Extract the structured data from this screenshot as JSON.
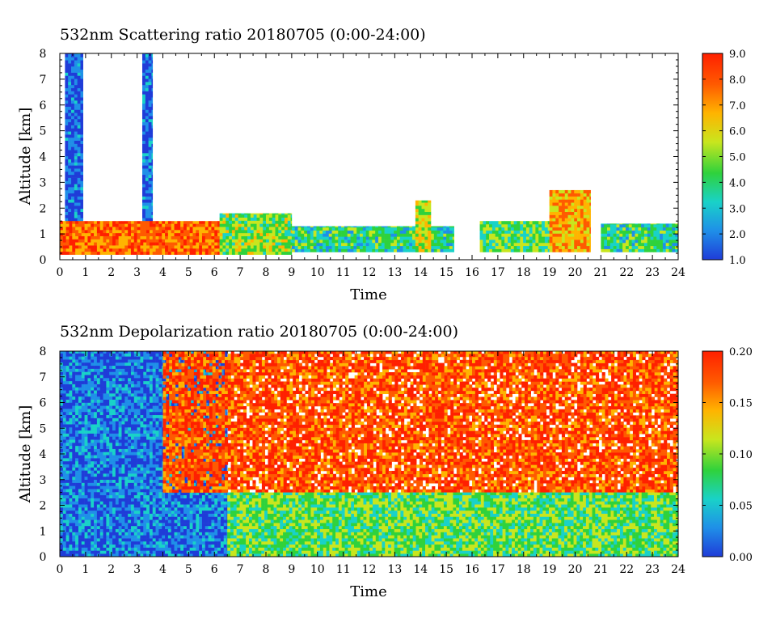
{
  "chart_data": [
    {
      "type": "heatmap",
      "title": "532nm Scattering ratio  20180705 (0:00-24:00)",
      "xlabel": "Time",
      "ylabel": "Altitude [km]",
      "xlim": [
        0,
        24
      ],
      "ylim": [
        0,
        8
      ],
      "x_ticks": [
        "0",
        "1",
        "2",
        "3",
        "4",
        "5",
        "6",
        "7",
        "8",
        "9",
        "10",
        "11",
        "12",
        "13",
        "14",
        "15",
        "16",
        "17",
        "18",
        "19",
        "20",
        "21",
        "22",
        "23",
        "24"
      ],
      "y_ticks": [
        "0",
        "1",
        "2",
        "3",
        "4",
        "5",
        "6",
        "7",
        "8"
      ],
      "colorbar": {
        "range": [
          1.0,
          9.0
        ],
        "ticks": [
          "1.0",
          "2.0",
          "3.0",
          "4.0",
          "5.0",
          "6.0",
          "7.0",
          "8.0",
          "9.0"
        ],
        "colors": [
          "#1f3cd8",
          "#1f8fe8",
          "#19d2c8",
          "#2fd23c",
          "#c8e61e",
          "#ffb400",
          "#ff5a00",
          "#ff2000"
        ]
      },
      "features": [
        {
          "name": "tall column",
          "time": [
            0.2,
            0.9
          ],
          "altitude": [
            0.3,
            8.0
          ],
          "value": 1.8
        },
        {
          "name": "tall column",
          "time": [
            3.2,
            3.6
          ],
          "altitude": [
            0.3,
            8.0
          ],
          "value": 2.0
        },
        {
          "name": "boundary layer",
          "time": [
            0.0,
            6.2
          ],
          "altitude": [
            0.2,
            1.5
          ],
          "value": 7.5
        },
        {
          "name": "boundary layer",
          "time": [
            6.2,
            9.0
          ],
          "altitude": [
            0.2,
            1.8
          ],
          "value": 5.0
        },
        {
          "name": "scattered low clouds",
          "time": [
            9.0,
            15.3
          ],
          "altitude": [
            0.3,
            1.3
          ],
          "value": 4.0
        },
        {
          "name": "cumulus tops",
          "time": [
            13.8,
            14.4
          ],
          "altitude": [
            0.3,
            2.3
          ],
          "value": 5.5
        },
        {
          "name": "scattered low clouds",
          "time": [
            16.3,
            19.0
          ],
          "altitude": [
            0.3,
            1.5
          ],
          "value": 4.5
        },
        {
          "name": "convective clouds",
          "time": [
            19.0,
            20.6
          ],
          "altitude": [
            0.3,
            2.7
          ],
          "value": 6.5
        },
        {
          "name": "scattered clouds",
          "time": [
            21.0,
            24.0
          ],
          "altitude": [
            0.3,
            1.4
          ],
          "value": 4.0
        }
      ]
    },
    {
      "type": "heatmap",
      "title": "532nm Depolarization ratio  20180705 (0:00-24:00)",
      "xlabel": "Time",
      "ylabel": "Altitude [km]",
      "xlim": [
        0,
        24
      ],
      "ylim": [
        0,
        8
      ],
      "x_ticks": [
        "0",
        "1",
        "2",
        "3",
        "4",
        "5",
        "6",
        "7",
        "8",
        "9",
        "10",
        "11",
        "12",
        "13",
        "14",
        "15",
        "16",
        "17",
        "18",
        "19",
        "20",
        "21",
        "22",
        "23",
        "24"
      ],
      "y_ticks": [
        "0",
        "1",
        "2",
        "3",
        "4",
        "5",
        "6",
        "7",
        "8"
      ],
      "colorbar": {
        "range": [
          0.0,
          0.2
        ],
        "ticks": [
          "0.00",
          "0.05",
          "0.10",
          "0.15",
          "0.20"
        ],
        "colors": [
          "#1f3cd8",
          "#1f8fe8",
          "#19d2c8",
          "#2fd23c",
          "#c8e61e",
          "#ffb400",
          "#ff5a00",
          "#ff2000"
        ]
      },
      "features": [
        {
          "name": "low-depol region",
          "time": [
            0.0,
            6.5
          ],
          "altitude": [
            0.0,
            8.0
          ],
          "value": 0.03
        },
        {
          "name": "noisy high-depol region",
          "time": [
            4.0,
            24.0
          ],
          "altitude": [
            2.5,
            8.0
          ],
          "value": 0.17
        },
        {
          "name": "boundary layer",
          "time": [
            6.5,
            24.0
          ],
          "altitude": [
            0.0,
            2.5
          ],
          "value": 0.09
        }
      ]
    }
  ]
}
